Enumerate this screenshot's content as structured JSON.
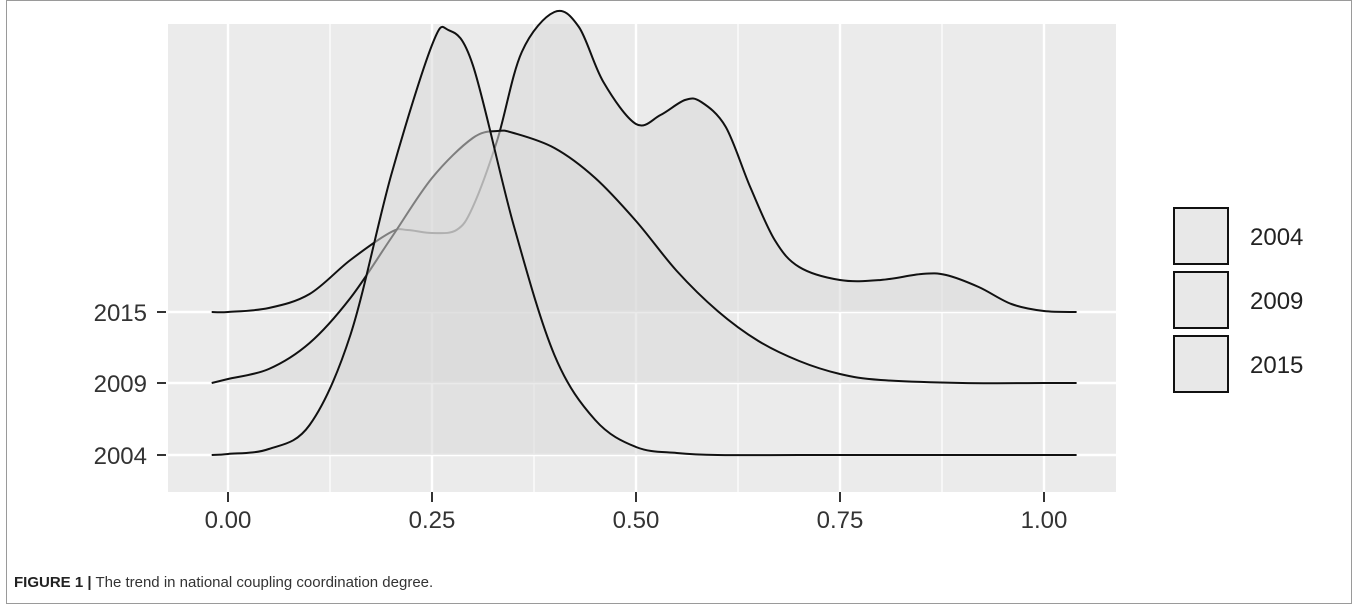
{
  "caption": {
    "label": "FIGURE 1 |",
    "text": " The trend in national coupling coordination degree."
  },
  "colors": {
    "panel": "#ebebeb",
    "grid": "#ffffff",
    "fill": "#d9d9d9",
    "line": "#111111",
    "legend_fill": "#e8e8e8"
  },
  "chart_data": {
    "type": "area",
    "subtype": "ridgeline density",
    "title": "",
    "xlabel": "",
    "ylabel": "",
    "xlim": [
      -0.05,
      1.05
    ],
    "x_ticks": [
      "0.00",
      "0.25",
      "0.50",
      "0.75",
      "1.00"
    ],
    "x_tick_values": [
      0.0,
      0.25,
      0.5,
      0.75,
      1.0
    ],
    "y_categories": [
      "2004",
      "2009",
      "2015"
    ],
    "grid": true,
    "legend": {
      "position": "right",
      "entries": [
        "2004",
        "2009",
        "2015"
      ]
    },
    "series": [
      {
        "name": "2004",
        "x": [
          -0.02,
          0.0,
          0.05,
          0.1,
          0.15,
          0.2,
          0.25,
          0.27,
          0.3,
          0.35,
          0.4,
          0.45,
          0.5,
          0.55,
          0.6,
          0.7,
          0.8,
          0.9,
          1.0,
          1.04
        ],
        "density": [
          0.0,
          0.01,
          0.06,
          0.3,
          1.2,
          2.8,
          4.1,
          4.25,
          3.9,
          2.3,
          1.0,
          0.35,
          0.08,
          0.02,
          0.0,
          0.0,
          0.0,
          0.0,
          0.0,
          0.0
        ]
      },
      {
        "name": "2009",
        "x": [
          -0.02,
          0.0,
          0.05,
          0.1,
          0.15,
          0.2,
          0.25,
          0.3,
          0.33,
          0.35,
          0.4,
          0.45,
          0.5,
          0.55,
          0.6,
          0.65,
          0.7,
          0.75,
          0.8,
          0.9,
          1.0,
          1.04
        ],
        "density": [
          0.0,
          0.04,
          0.14,
          0.4,
          0.85,
          1.45,
          2.05,
          2.45,
          2.52,
          2.5,
          2.35,
          2.05,
          1.62,
          1.12,
          0.72,
          0.42,
          0.22,
          0.09,
          0.03,
          0.0,
          0.0,
          0.0
        ]
      },
      {
        "name": "2015",
        "x": [
          -0.02,
          0.0,
          0.05,
          0.1,
          0.15,
          0.2,
          0.22,
          0.25,
          0.28,
          0.3,
          0.33,
          0.36,
          0.4,
          0.43,
          0.46,
          0.5,
          0.53,
          0.56,
          0.58,
          0.61,
          0.64,
          0.67,
          0.7,
          0.75,
          0.8,
          0.85,
          0.88,
          0.92,
          0.96,
          1.0,
          1.04
        ],
        "density": [
          0.0,
          0.0,
          0.04,
          0.18,
          0.52,
          0.8,
          0.82,
          0.79,
          0.82,
          1.05,
          1.72,
          2.6,
          3.0,
          2.85,
          2.3,
          1.88,
          1.97,
          2.12,
          2.1,
          1.85,
          1.25,
          0.72,
          0.45,
          0.32,
          0.32,
          0.38,
          0.37,
          0.25,
          0.08,
          0.01,
          0.0
        ]
      }
    ]
  }
}
